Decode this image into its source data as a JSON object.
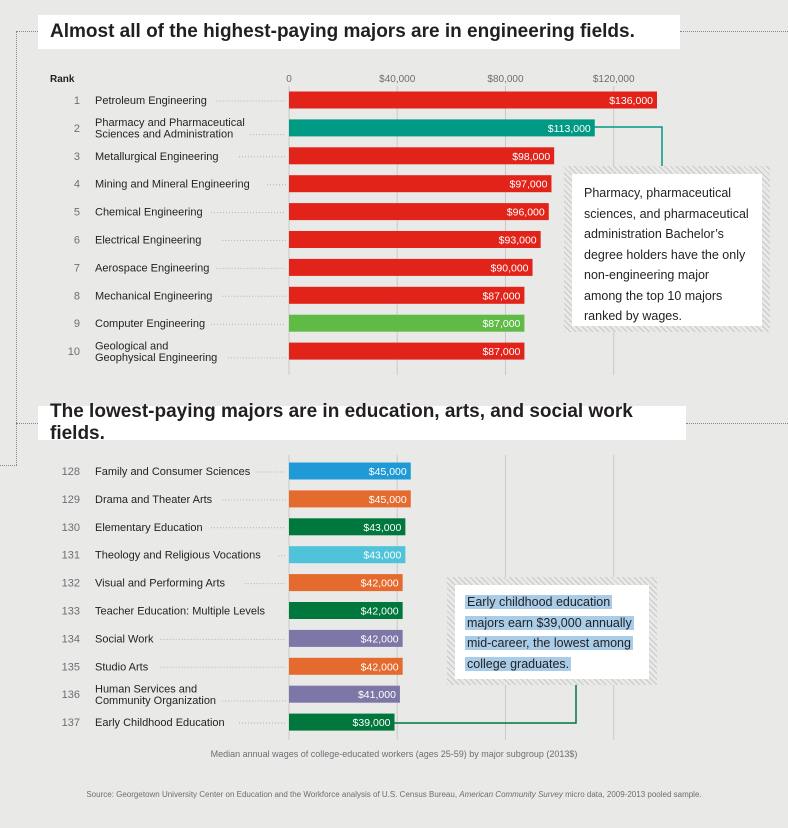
{
  "section1": {
    "title": "Almost all of the highest-paying majors are in engineering fields."
  },
  "section2": {
    "title": "The lowest-paying majors are in education, arts, and social work fields."
  },
  "callout1": {
    "text": "Pharmacy, pharmaceutical sciences, and pharmaceutical administration Bachelor’s degree holders have the only non-engineering major among the top 10 majors ranked by wages."
  },
  "callout2": {
    "lines": [
      "Early childhood education",
      "majors earn $39,000 annually",
      "mid-career, the lowest among",
      "college graduates."
    ]
  },
  "caption": "Median annual wages of college-educated workers (ages 25-59) by major subgroup (2013$)",
  "source_prefix": "Source: Georgetown University Center on Education and the Workforce analysis of U.S. Census Bureau, ",
  "source_italic": "American Community Survey",
  "source_suffix": " micro data, 2009-2013 pooled sample.",
  "chart_data": [
    {
      "type": "bar",
      "orientation": "horizontal",
      "rank_header": "Rank",
      "ticks": [
        "0",
        "$40,000",
        "$80,000",
        "$120,000"
      ],
      "tick_values": [
        0,
        40000,
        80000,
        120000
      ],
      "xlim": [
        0,
        140000
      ],
      "grid": true,
      "bars": [
        {
          "rank": "1",
          "label": [
            "Petroleum Engineering"
          ],
          "value": 136000,
          "value_label": "$136,000",
          "color": "#e2231a"
        },
        {
          "rank": "2",
          "label": [
            "Pharmacy and Pharmaceutical",
            "Sciences and Administration"
          ],
          "value": 113000,
          "value_label": "$113,000",
          "color": "#009983"
        },
        {
          "rank": "3",
          "label": [
            "Metallurgical Engineering"
          ],
          "value": 98000,
          "value_label": "$98,000",
          "color": "#e2231a"
        },
        {
          "rank": "4",
          "label": [
            "Mining and Mineral Engineering"
          ],
          "value": 97000,
          "value_label": "$97,000",
          "color": "#e2231a"
        },
        {
          "rank": "5",
          "label": [
            "Chemical Engineering"
          ],
          "value": 96000,
          "value_label": "$96,000",
          "color": "#e2231a"
        },
        {
          "rank": "6",
          "label": [
            "Electrical Engineering"
          ],
          "value": 93000,
          "value_label": "$93,000",
          "color": "#e2231a"
        },
        {
          "rank": "7",
          "label": [
            "Aerospace Engineering"
          ],
          "value": 90000,
          "value_label": "$90,000",
          "color": "#e2231a"
        },
        {
          "rank": "8",
          "label": [
            "Mechanical Engineering"
          ],
          "value": 87000,
          "value_label": "$87,000",
          "color": "#e2231a"
        },
        {
          "rank": "9",
          "label": [
            "Computer Engineering"
          ],
          "value": 87000,
          "value_label": "$87,000",
          "color": "#5fbb46"
        },
        {
          "rank": "10",
          "label": [
            "Geological and",
            "Geophysical Engineering"
          ],
          "value": 87000,
          "value_label": "$87,000",
          "color": "#e2231a"
        }
      ]
    },
    {
      "type": "bar",
      "orientation": "horizontal",
      "xlim": [
        0,
        140000
      ],
      "grid": true,
      "bars": [
        {
          "rank": "128",
          "label": [
            "Family and Consumer Sciences"
          ],
          "value": 45000,
          "value_label": "$45,000",
          "color": "#1f9ad6"
        },
        {
          "rank": "129",
          "label": [
            "Drama and Theater Arts"
          ],
          "value": 45000,
          "value_label": "$45,000",
          "color": "#e56a2e"
        },
        {
          "rank": "130",
          "label": [
            "Elementary Education"
          ],
          "value": 43000,
          "value_label": "$43,000",
          "color": "#00773d"
        },
        {
          "rank": "131",
          "label": [
            "Theology and Religious Vocations"
          ],
          "value": 43000,
          "value_label": "$43,000",
          "color": "#4fc3da"
        },
        {
          "rank": "132",
          "label": [
            "Visual and Performing Arts"
          ],
          "value": 42000,
          "value_label": "$42,000",
          "color": "#e56a2e"
        },
        {
          "rank": "133",
          "label": [
            "Teacher Education: Multiple Levels"
          ],
          "value": 42000,
          "value_label": "$42,000",
          "color": "#00773d"
        },
        {
          "rank": "134",
          "label": [
            "Social Work"
          ],
          "value": 42000,
          "value_label": "$42,000",
          "color": "#7d77a8"
        },
        {
          "rank": "135",
          "label": [
            "Studio Arts"
          ],
          "value": 42000,
          "value_label": "$42,000",
          "color": "#e56a2e"
        },
        {
          "rank": "136",
          "label": [
            "Human Services and",
            "Community Organization"
          ],
          "value": 41000,
          "value_label": "$41,000",
          "color": "#7d77a8"
        },
        {
          "rank": "137",
          "label": [
            "Early Childhood Education"
          ],
          "value": 39000,
          "value_label": "$39,000",
          "color": "#00773d"
        }
      ]
    }
  ]
}
